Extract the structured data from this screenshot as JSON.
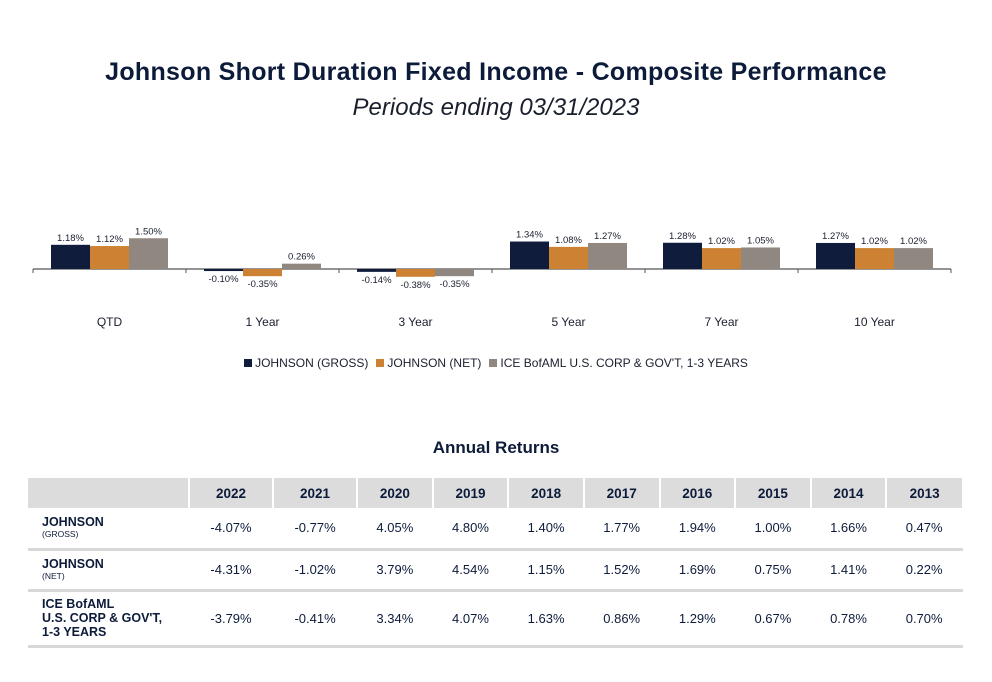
{
  "header": {
    "title": "Johnson Short Duration Fixed Income - Composite Performance",
    "subtitle": "Periods ending 03/31/2023"
  },
  "chart_data": {
    "type": "bar",
    "categories": [
      "QTD",
      "1 Year",
      "3 Year",
      "5 Year",
      "7 Year",
      "10 Year"
    ],
    "series": [
      {
        "name": "JOHNSON (GROSS)",
        "color": "#0f1c3b",
        "values": [
          1.18,
          -0.1,
          -0.14,
          1.34,
          1.28,
          1.27
        ],
        "labels": [
          "1.18%",
          "-0.10%",
          "-0.14%",
          "1.34%",
          "1.28%",
          "1.27%"
        ]
      },
      {
        "name": "JOHNSON (NET)",
        "color": "#cc8232",
        "values": [
          1.12,
          -0.35,
          -0.38,
          1.08,
          1.02,
          1.02
        ],
        "labels": [
          "1.12%",
          "-0.35%",
          "-0.38%",
          "1.08%",
          "1.02%",
          "1.02%"
        ]
      },
      {
        "name": "ICE BofAML U.S. CORP & GOV'T, 1-3 YEARS",
        "color": "#908880",
        "values": [
          1.5,
          0.26,
          -0.35,
          1.27,
          1.05,
          1.02
        ],
        "labels": [
          "1.50%",
          "0.26%",
          "-0.35%",
          "1.27%",
          "1.05%",
          "1.02%"
        ]
      }
    ],
    "legend_position": "bottom"
  },
  "table": {
    "title": "Annual Returns",
    "years": [
      "2022",
      "2021",
      "2020",
      "2019",
      "2018",
      "2017",
      "2016",
      "2015",
      "2014",
      "2013"
    ],
    "rows": [
      {
        "label": "JOHNSON",
        "sublabel": "(GROSS)",
        "values": [
          "-4.07%",
          "-0.77%",
          "4.05%",
          "4.80%",
          "1.40%",
          "1.77%",
          "1.94%",
          "1.00%",
          "1.66%",
          "0.47%"
        ]
      },
      {
        "label": "JOHNSON",
        "sublabel": "(NET)",
        "values": [
          "-4.31%",
          "-1.02%",
          "3.79%",
          "4.54%",
          "1.15%",
          "1.52%",
          "1.69%",
          "0.75%",
          "1.41%",
          "0.22%"
        ]
      },
      {
        "label_lines": [
          "ICE BofAML",
          "U.S. CORP & GOV'T,",
          "1-3 YEARS"
        ],
        "values": [
          "-3.79%",
          "-0.41%",
          "3.34%",
          "4.07%",
          "1.63%",
          "0.86%",
          "1.29%",
          "0.67%",
          "0.78%",
          "0.70%"
        ]
      }
    ]
  }
}
